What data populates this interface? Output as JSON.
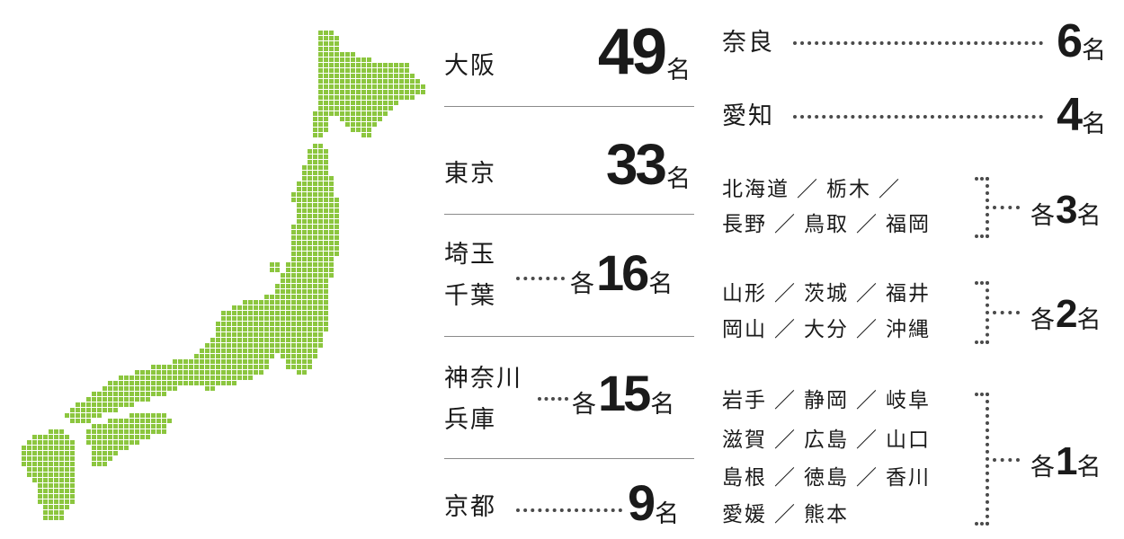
{
  "colors": {
    "accent": "#8cc63f",
    "text": "#1a1a1a",
    "rule": "#8a8a8a"
  },
  "left": {
    "osaka": {
      "label": "大阪",
      "num": "49",
      "unit": "名"
    },
    "tokyo": {
      "label": "東京",
      "num": "33",
      "unit": "名"
    },
    "saitama_chiba": {
      "label1": "埼玉",
      "label2": "千葉",
      "prefix": "各",
      "num": "16",
      "unit": "名"
    },
    "kanagawa_hyogo": {
      "label1": "神奈川",
      "label2": "兵庫",
      "prefix": "各",
      "num": "15",
      "unit": "名"
    },
    "kyoto": {
      "label": "京都",
      "num": "9",
      "unit": "名"
    }
  },
  "right": {
    "nara": {
      "label": "奈良",
      "num": "6",
      "unit": "名"
    },
    "aichi": {
      "label": "愛知",
      "num": "4",
      "unit": "名"
    },
    "three": {
      "rows": [
        [
          "北海道",
          "栃木",
          ""
        ],
        [
          "長野",
          "鳥取",
          "福岡"
        ]
      ],
      "prefix": "各",
      "num": "3",
      "unit": "名"
    },
    "two": {
      "rows": [
        [
          "山形",
          "茨城",
          "福井"
        ],
        [
          "岡山",
          "大分",
          "沖縄"
        ]
      ],
      "prefix": "各",
      "num": "2",
      "unit": "名"
    },
    "one": {
      "rows": [
        [
          "岩手",
          "静岡",
          "岐阜"
        ],
        [
          "滋賀",
          "広島",
          "山口"
        ],
        [
          "島根",
          "徳島",
          "香川"
        ],
        [
          "愛媛",
          "熊本"
        ]
      ],
      "prefix": "各",
      "num": "1",
      "unit": "名"
    }
  },
  "separator": "／"
}
